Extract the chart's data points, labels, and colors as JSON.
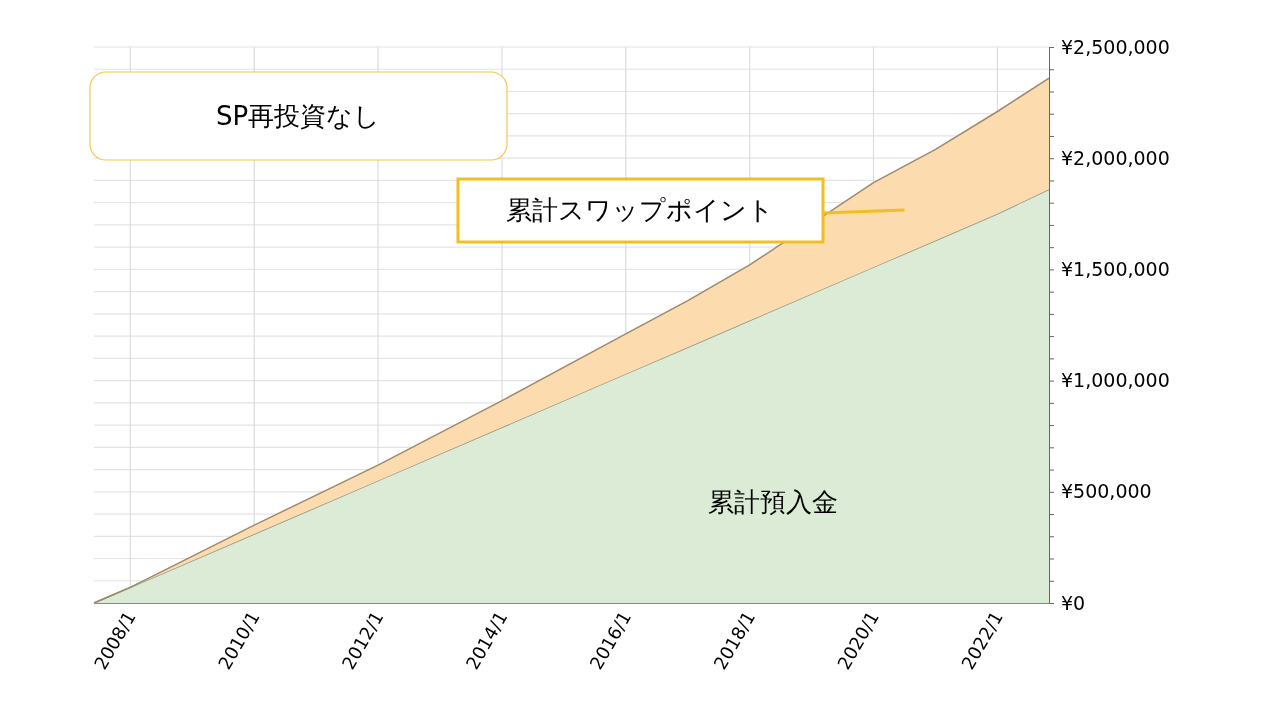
{
  "chart_data": {
    "type": "area",
    "title": "SP再投資なし",
    "stacked": true,
    "x": [
      "2007-06",
      "2008-01",
      "2010-01",
      "2012-01",
      "2014-01",
      "2016-01",
      "2017-01",
      "2018-01",
      "2020-01",
      "2021-01",
      "2022-01",
      "2022-11"
    ],
    "series": [
      {
        "name": "累計預入金",
        "color": "#dcebd6",
        "values": [
          0,
          70000,
          310000,
          550000,
          790000,
          1030000,
          1150000,
          1270000,
          1510000,
          1630000,
          1750000,
          1860000
        ]
      },
      {
        "name": "累計スワップポイント",
        "color": "#fcdbae",
        "values": [
          0,
          0,
          40000,
          70000,
          120000,
          180000,
          210000,
          250000,
          380000,
          410000,
          460000,
          500000
        ]
      }
    ],
    "xlim": [
      "2007-06",
      "2022-11"
    ],
    "xticks": [
      {
        "value": "2008-01",
        "label": "2008/1"
      },
      {
        "value": "2010-01",
        "label": "2010/1"
      },
      {
        "value": "2012-01",
        "label": "2012/1"
      },
      {
        "value": "2014-01",
        "label": "2014/1"
      },
      {
        "value": "2016-01",
        "label": "2016/1"
      },
      {
        "value": "2018-01",
        "label": "2018/1"
      },
      {
        "value": "2020-01",
        "label": "2020/1"
      },
      {
        "value": "2022-01",
        "label": "2022/1"
      }
    ],
    "ylim": [
      0,
      2500000
    ],
    "yticks": [
      {
        "value": 0,
        "label": "¥0"
      },
      {
        "value": 100000,
        "label": null
      },
      {
        "value": 200000,
        "label": null
      },
      {
        "value": 300000,
        "label": null
      },
      {
        "value": 400000,
        "label": null
      },
      {
        "value": 500000,
        "label": "¥500,000"
      },
      {
        "value": 600000,
        "label": null
      },
      {
        "value": 700000,
        "label": null
      },
      {
        "value": 800000,
        "label": null
      },
      {
        "value": 900000,
        "label": null
      },
      {
        "value": 1000000,
        "label": "¥1,000,000"
      },
      {
        "value": 1100000,
        "label": null
      },
      {
        "value": 1200000,
        "label": null
      },
      {
        "value": 1300000,
        "label": null
      },
      {
        "value": 1400000,
        "label": null
      },
      {
        "value": 1500000,
        "label": "¥1,500,000"
      },
      {
        "value": 1600000,
        "label": null
      },
      {
        "value": 1700000,
        "label": null
      },
      {
        "value": 1800000,
        "label": null
      },
      {
        "value": 1900000,
        "label": null
      },
      {
        "value": 2000000,
        "label": "¥2,000,000"
      },
      {
        "value": 2100000,
        "label": null
      },
      {
        "value": 2200000,
        "label": null
      },
      {
        "value": 2300000,
        "label": null
      },
      {
        "value": 2400000,
        "label": null
      },
      {
        "value": 2500000,
        "label": "¥2,500,000"
      }
    ],
    "grid": true,
    "legend": false
  }
}
